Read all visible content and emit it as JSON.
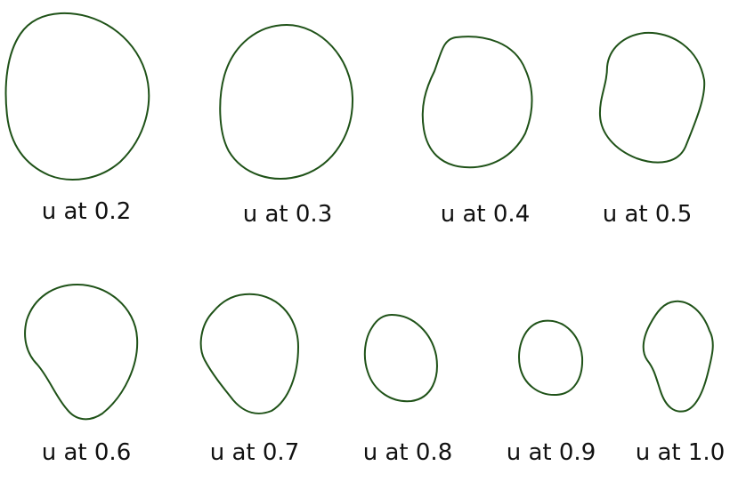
{
  "colors": {
    "curve": "#1f5218",
    "text": "#111111",
    "background": "#ffffff"
  },
  "panels": [
    {
      "label": "u at 0.2"
    },
    {
      "label": "u at 0.3"
    },
    {
      "label": "u at 0.4"
    },
    {
      "label": "u at 0.5"
    },
    {
      "label": "u at 0.6"
    },
    {
      "label": "u at 0.7"
    },
    {
      "label": "u at 0.8"
    },
    {
      "label": "u at 0.9"
    },
    {
      "label": "u at 1.0"
    }
  ]
}
